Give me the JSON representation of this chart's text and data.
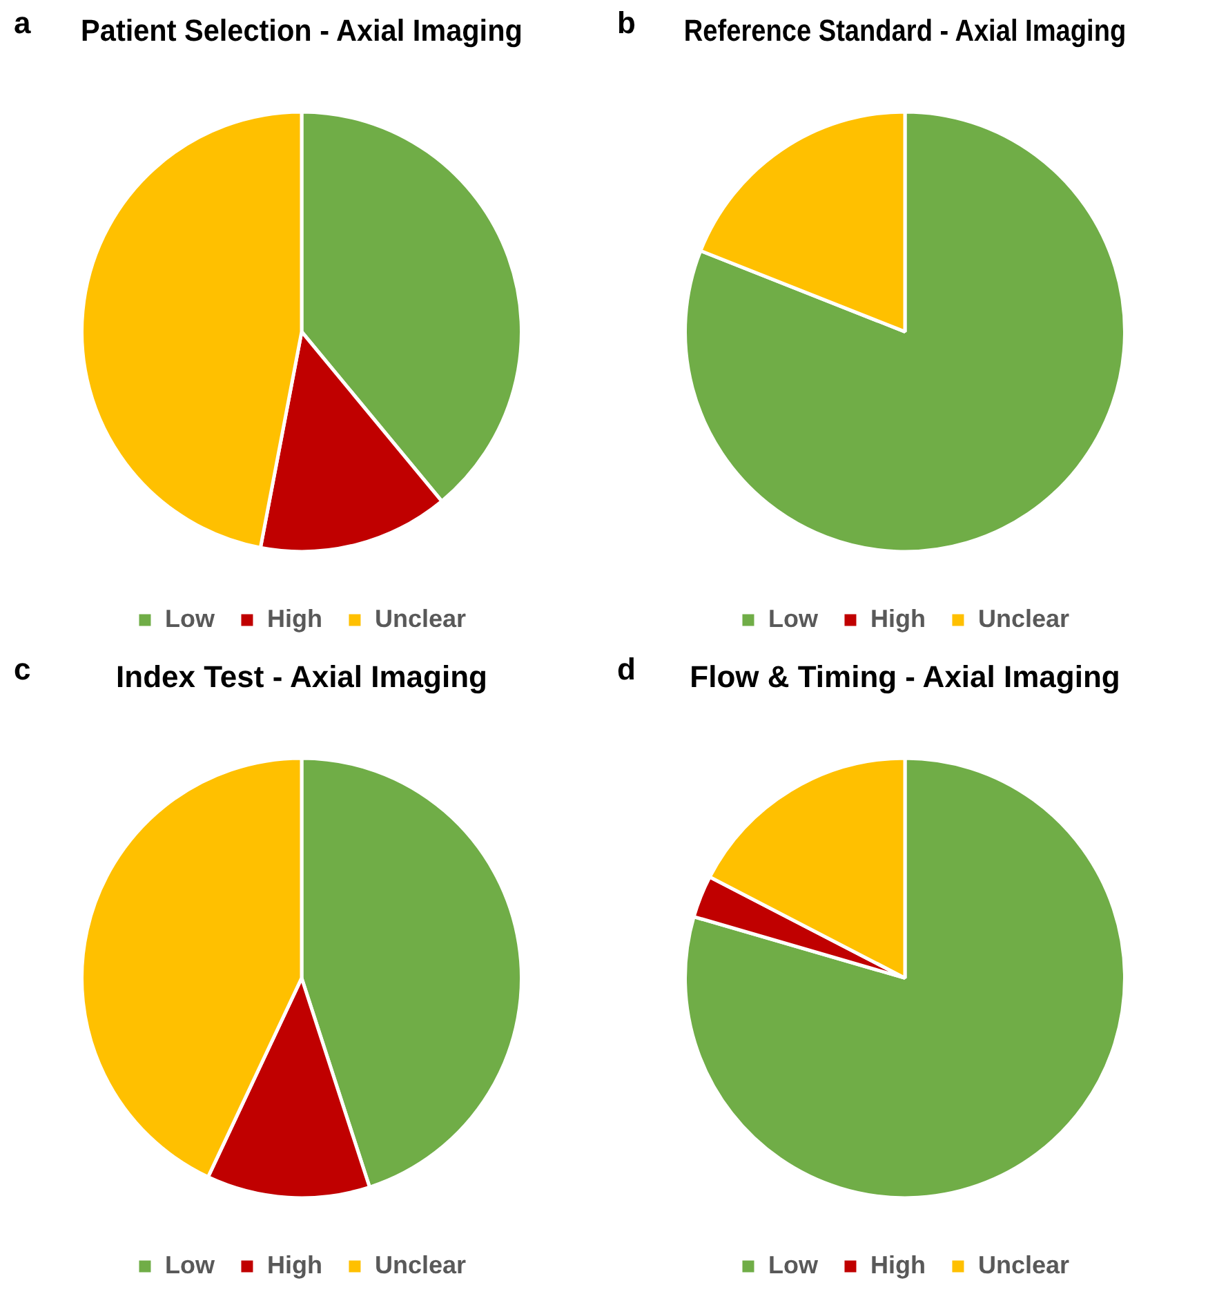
{
  "chart_data": [
    {
      "type": "pie",
      "title": "Patient Selection - Axial Imaging",
      "annotations": [
        "a"
      ],
      "categories": [
        "Low",
        "High",
        "Unclear"
      ],
      "values": [
        39,
        14,
        47
      ],
      "colors": [
        "#70ad47",
        "#c00000",
        "#ffc000"
      ],
      "legend": "bottom"
    },
    {
      "type": "pie",
      "title": "Reference Standard - Axial Imaging",
      "annotations": [
        "b"
      ],
      "categories": [
        "Low",
        "High",
        "Unclear"
      ],
      "values": [
        81,
        0,
        19
      ],
      "colors": [
        "#70ad47",
        "#c00000",
        "#ffc000"
      ],
      "legend": "bottom"
    },
    {
      "type": "pie",
      "title": "Index Test - Axial Imaging",
      "annotations": [
        "c"
      ],
      "categories": [
        "Low",
        "High",
        "Unclear"
      ],
      "values": [
        45,
        12,
        43
      ],
      "colors": [
        "#70ad47",
        "#c00000",
        "#ffc000"
      ],
      "legend": "bottom"
    },
    {
      "type": "pie",
      "title": "Flow & Timing - Axial Imaging",
      "annotations": [
        "d"
      ],
      "categories": [
        "Low",
        "High",
        "Unclear"
      ],
      "values": [
        79.5,
        3.1,
        17.4
      ],
      "colors": [
        "#70ad47",
        "#c00000",
        "#ffc000"
      ],
      "legend": "bottom"
    }
  ]
}
